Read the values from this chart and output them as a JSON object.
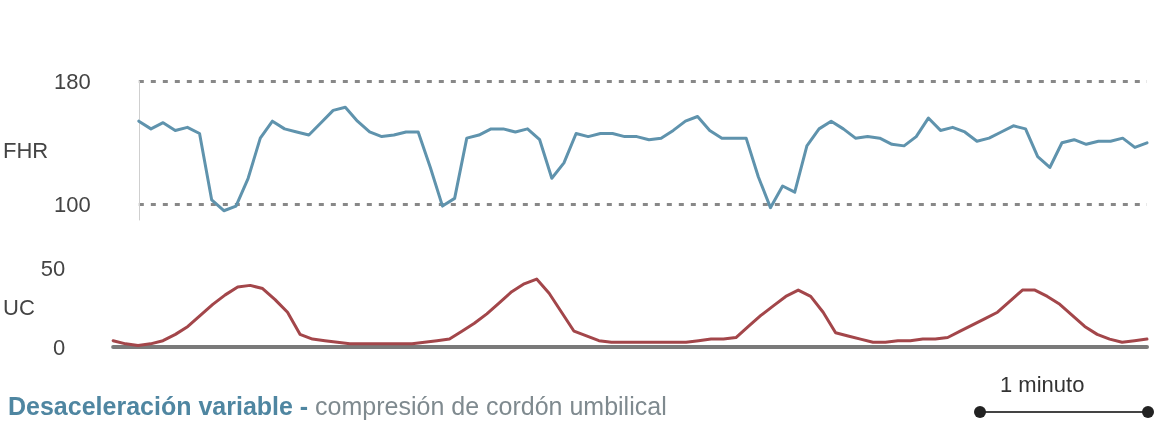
{
  "chart_data": [
    {
      "type": "line",
      "ylabel": "FHR",
      "categories": [
        null,
        null,
        null,
        null,
        null,
        null,
        null,
        null,
        null,
        null,
        null,
        null,
        null,
        null,
        null,
        null,
        null,
        null,
        null,
        null,
        null,
        null,
        null,
        null,
        null,
        null,
        null,
        null,
        null,
        null,
        null,
        null,
        null,
        null,
        null,
        null,
        null,
        null,
        null,
        null,
        null,
        null,
        null,
        null,
        null,
        null,
        null,
        null,
        null,
        null,
        null,
        null,
        null,
        null,
        null,
        null,
        null,
        null,
        null,
        null,
        null,
        null,
        null,
        null,
        null,
        null,
        null,
        null,
        null,
        null,
        null,
        null,
        null,
        null,
        null,
        null,
        null,
        null,
        null,
        null,
        null,
        null,
        null,
        null
      ],
      "ylim": [
        90,
        180
      ],
      "yticks": [
        100,
        180
      ],
      "grid": "y",
      "tick_labels": "y",
      "marker": "none",
      "line_style": "solid",
      "series": [
        {
          "color": "#5f93ad",
          "values": [
            154,
            149,
            153,
            148,
            150,
            146,
            103,
            96,
            99,
            117,
            143,
            154,
            149,
            147,
            145,
            153,
            161,
            163,
            154,
            147,
            144,
            145,
            147,
            147,
            124,
            99,
            104,
            143,
            145,
            149,
            149,
            147,
            149,
            142,
            117,
            127,
            146,
            144,
            146,
            146,
            144,
            144,
            142,
            143,
            148,
            154,
            157,
            148,
            143,
            143,
            143,
            118,
            98,
            112,
            108,
            138,
            149,
            154,
            149,
            143,
            144,
            143,
            139,
            138,
            144,
            156,
            148,
            150,
            147,
            141,
            143,
            147,
            151,
            149,
            131,
            124,
            140,
            142,
            139,
            141,
            141,
            143,
            137,
            140
          ]
        }
      ]
    },
    {
      "type": "line",
      "ylabel": "UC",
      "categories": [
        null,
        null,
        null,
        null,
        null,
        null,
        null,
        null,
        null,
        null,
        null,
        null,
        null,
        null,
        null,
        null,
        null,
        null,
        null,
        null,
        null,
        null,
        null,
        null,
        null,
        null,
        null,
        null,
        null,
        null,
        null,
        null,
        null,
        null,
        null,
        null,
        null,
        null,
        null,
        null,
        null,
        null,
        null,
        null,
        null,
        null,
        null,
        null,
        null,
        null,
        null,
        null,
        null,
        null,
        null,
        null,
        null,
        null,
        null,
        null,
        null,
        null,
        null,
        null,
        null,
        null,
        null,
        null,
        null,
        null,
        null,
        null,
        null,
        null,
        null,
        null,
        null,
        null,
        null,
        null,
        null,
        null,
        null,
        null
      ],
      "ylim": [
        0,
        50
      ],
      "yticks": [
        0,
        50
      ],
      "tick_labels": "y",
      "marker": "none",
      "line_style": "solid",
      "title": "Desaceleración variable - compresión de cordón umbilical",
      "annotations": [
        "1 minuto"
      ],
      "series": [
        {
          "color": "#a3464a",
          "values": [
            4,
            2,
            1,
            2,
            4,
            8,
            13,
            20,
            27,
            33,
            38,
            39,
            37,
            30,
            22,
            8,
            5,
            4,
            3,
            2,
            2,
            2,
            2,
            2,
            2,
            3,
            4,
            5,
            10,
            15,
            21,
            28,
            35,
            40,
            43,
            34,
            22,
            10,
            7,
            4,
            3,
            3,
            3,
            3,
            3,
            3,
            3,
            4,
            5,
            5,
            6,
            13,
            20,
            26,
            32,
            36,
            32,
            22,
            9,
            7,
            5,
            3,
            3,
            4,
            4,
            5,
            5,
            6,
            10,
            14,
            18,
            22,
            29,
            36,
            36,
            32,
            27,
            20,
            13,
            8,
            5,
            3,
            4,
            5
          ]
        }
      ]
    }
  ]
}
